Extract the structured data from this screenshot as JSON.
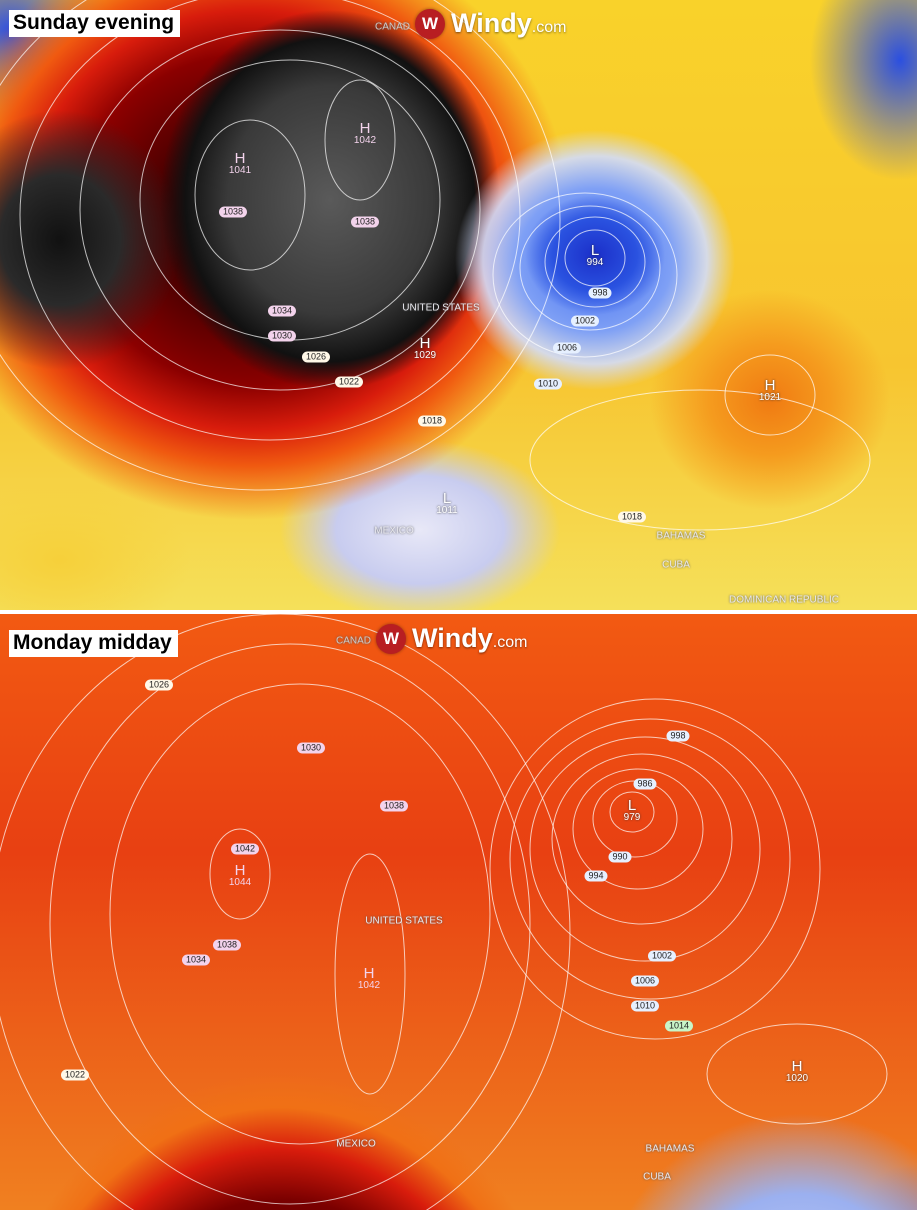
{
  "brand": {
    "logo_text": "Windy",
    "logo_suffix": ".com",
    "logo_icon": "windy-logo-icon",
    "accent": "#b81e22"
  },
  "panels": [
    {
      "title": "Sunday evening",
      "places": [
        "CANAD",
        "UNITED STATES",
        "MEXICO",
        "BAHAMAS",
        "CUBA",
        "DOMINICAN REPUBLIC"
      ],
      "centers": [
        {
          "type": "H",
          "value": "1041"
        },
        {
          "type": "H",
          "value": "1042"
        },
        {
          "type": "L",
          "value": "994"
        },
        {
          "type": "H",
          "value": "1029"
        },
        {
          "type": "H",
          "value": "1021"
        },
        {
          "type": "L",
          "value": "1011"
        }
      ],
      "isobars": [
        "1038",
        "1038",
        "998",
        "1002",
        "1006",
        "1010",
        "1034",
        "1030",
        "1026",
        "1022",
        "1018",
        "1018"
      ]
    },
    {
      "title": "Monday midday",
      "places": [
        "CANAD",
        "UNITED STATES",
        "MEXICO",
        "BAHAMAS",
        "CUBA"
      ],
      "centers": [
        {
          "type": "L",
          "value": "979"
        },
        {
          "type": "H",
          "value": "1044"
        },
        {
          "type": "H",
          "value": "1042"
        },
        {
          "type": "H",
          "value": "1020"
        }
      ],
      "isobars": [
        "1026",
        "1030",
        "1038",
        "998",
        "986",
        "990",
        "994",
        "1042",
        "1038",
        "1034",
        "1002",
        "1006",
        "1010",
        "1014",
        "1022"
      ]
    }
  ]
}
